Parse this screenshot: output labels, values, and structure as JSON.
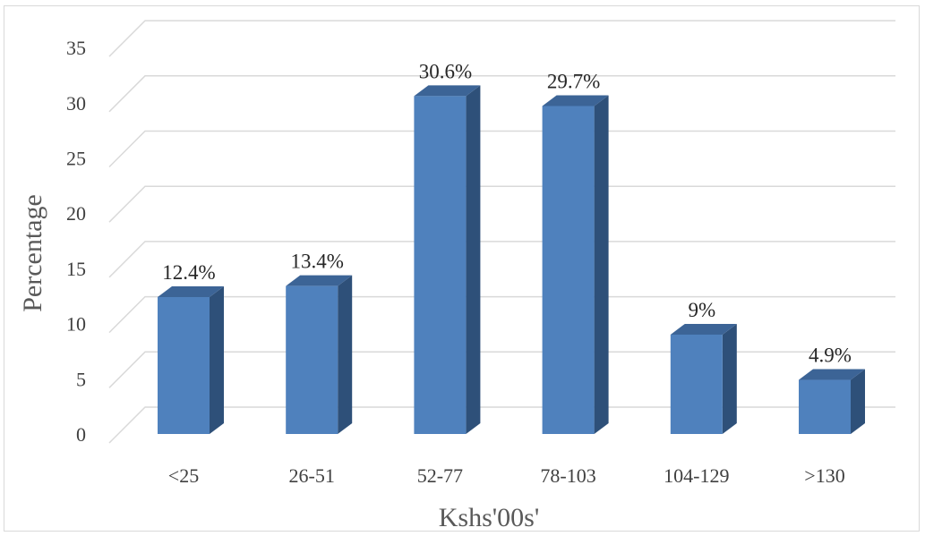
{
  "chart_data": {
    "type": "bar",
    "style": "3d-column",
    "title": "",
    "xlabel": "Kshs'00s'",
    "ylabel": "Percentage",
    "categories": [
      "<25",
      "26-51",
      "52-77",
      "78-103",
      "104-129",
      ">130"
    ],
    "values": [
      12.4,
      13.4,
      30.6,
      29.7,
      9,
      4.9
    ],
    "data_labels": [
      "12.4%",
      "13.4%",
      "30.6%",
      "29.7%",
      "9%",
      "4.9%"
    ],
    "ylim": [
      0,
      35
    ],
    "yticks": [
      0,
      5,
      10,
      15,
      20,
      25,
      30,
      35
    ],
    "grid": true,
    "legend": "none",
    "colors": {
      "bar_front": "#4f81bd",
      "bar_side": "#2e5079",
      "bar_top": "#3c6496",
      "gridline": "#d9d9d9"
    }
  }
}
